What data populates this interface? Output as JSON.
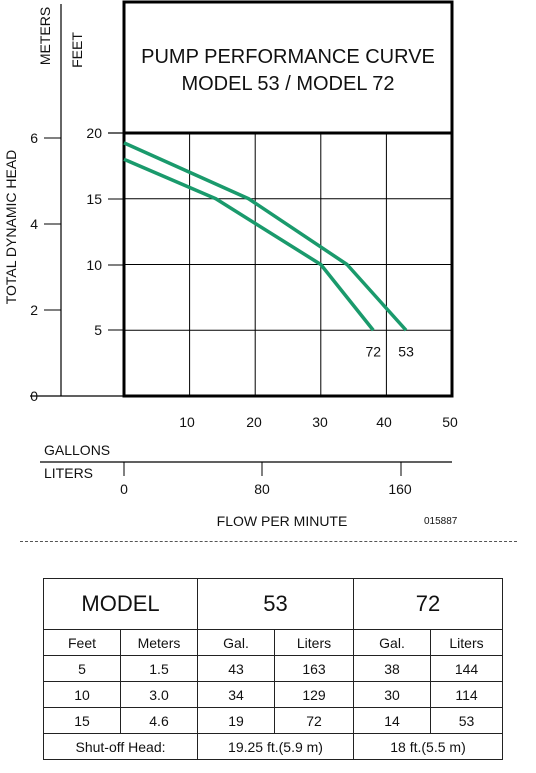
{
  "chart_data": {
    "type": "line",
    "title": "PUMP PERFORMANCE CURVE",
    "subtitle": "MODEL 53 / MODEL 72",
    "xlabel": "FLOW PER MINUTE",
    "ylabel": "TOTAL DYNAMIC HEAD",
    "x_unit_primary": "GALLONS",
    "x_unit_secondary": "LITERS",
    "y_unit_primary": "FEET",
    "y_unit_secondary": "METERS",
    "xlim": [
      0,
      50
    ],
    "ylim": [
      0,
      20
    ],
    "x_ticks": [
      "10",
      "20",
      "30",
      "40",
      "50"
    ],
    "x_ticks_secondary": [
      "0",
      "80",
      "160"
    ],
    "y_ticks": [
      "5",
      "10",
      "15",
      "20"
    ],
    "y_ticks_secondary": [
      "0",
      "2",
      "4",
      "6"
    ],
    "grid": true,
    "figure_code": "015887",
    "series": [
      {
        "name": "53",
        "x": [
          0,
          19,
          34,
          43
        ],
        "y": [
          19.25,
          15,
          10,
          5
        ]
      },
      {
        "name": "72",
        "x": [
          0,
          14,
          30,
          38
        ],
        "y": [
          18,
          15,
          10,
          5
        ]
      }
    ]
  },
  "table": {
    "model_label": "MODEL",
    "models": [
      "53",
      "72"
    ],
    "col_feet": "Feet",
    "col_meters": "Meters",
    "col_gal": "Gal.",
    "col_liters": "Liters",
    "rows": [
      {
        "feet": "5",
        "meters": "1.5",
        "m53_gal": "43",
        "m53_liters": "163",
        "m72_gal": "38",
        "m72_liters": "144"
      },
      {
        "feet": "10",
        "meters": "3.0",
        "m53_gal": "34",
        "m53_liters": "129",
        "m72_gal": "30",
        "m72_liters": "114"
      },
      {
        "feet": "15",
        "meters": "4.6",
        "m53_gal": "19",
        "m53_liters": "72",
        "m72_gal": "14",
        "m72_liters": "53"
      }
    ],
    "shutoff_label": "Shut-off Head:",
    "shutoff_53": "19.25 ft.(5.9 m)",
    "shutoff_72": "18 ft.(5.5 m)"
  },
  "colors": {
    "curve": "#1a9a6c",
    "frame": "#000000"
  }
}
